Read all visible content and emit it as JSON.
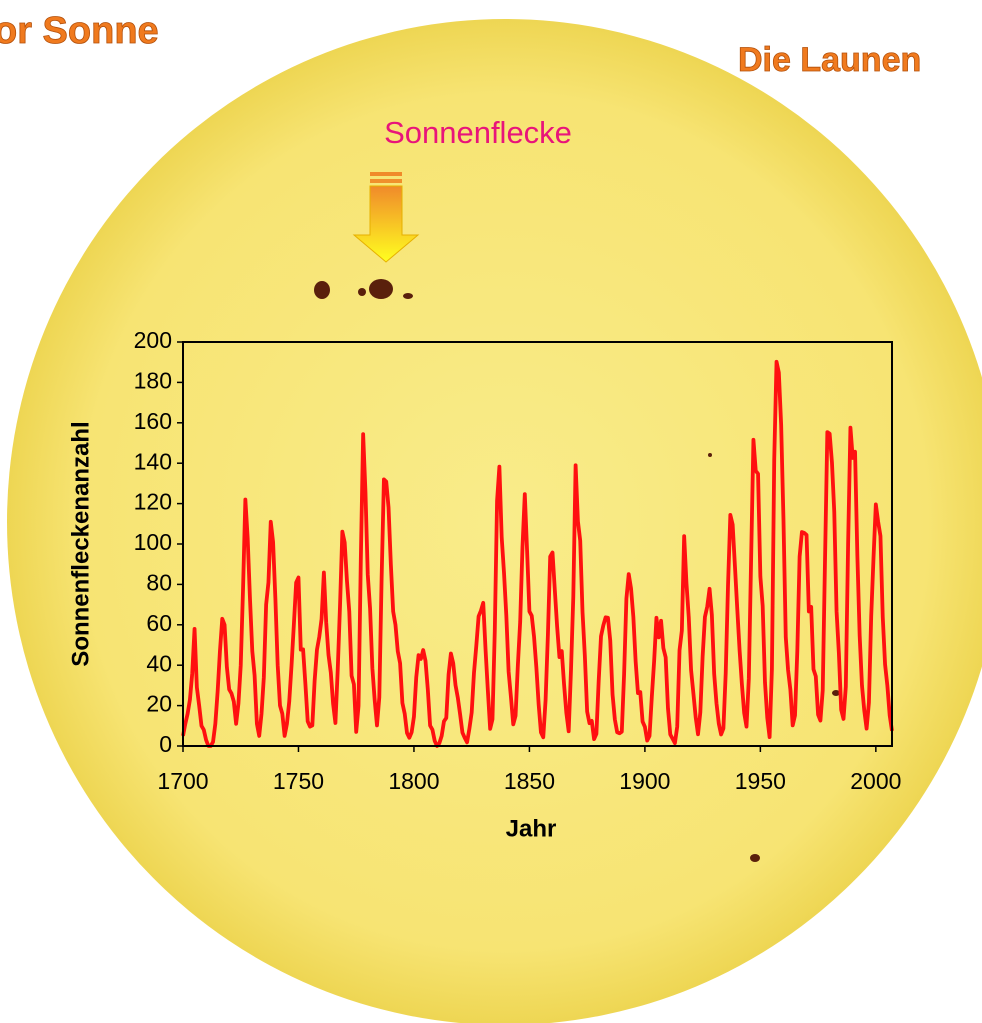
{
  "chart_data": {
    "type": "line",
    "header_left": "or Sonne",
    "header_right": "Die Launen",
    "annotation": "Sonnenflecke",
    "xlabel": "Jahr",
    "ylabel": "Sonnenfleckenanzahl",
    "color": "#ff1010",
    "xlim": [
      1700,
      2007
    ],
    "ylim": [
      0,
      200
    ],
    "xticks": [
      1700,
      1750,
      1800,
      1850,
      1900,
      1950,
      2000
    ],
    "yticks": [
      0,
      20,
      40,
      60,
      80,
      100,
      120,
      140,
      160,
      180,
      200
    ],
    "x": [
      1700,
      1701,
      1702,
      1703,
      1704,
      1705,
      1706,
      1707,
      1708,
      1709,
      1710,
      1711,
      1712,
      1713,
      1714,
      1715,
      1716,
      1717,
      1718,
      1719,
      1720,
      1721,
      1722,
      1723,
      1724,
      1725,
      1726,
      1727,
      1728,
      1729,
      1730,
      1731,
      1732,
      1733,
      1734,
      1735,
      1736,
      1737,
      1738,
      1739,
      1740,
      1741,
      1742,
      1743,
      1744,
      1745,
      1746,
      1747,
      1748,
      1749,
      1750,
      1751,
      1752,
      1753,
      1754,
      1755,
      1756,
      1757,
      1758,
      1759,
      1760,
      1761,
      1762,
      1763,
      1764,
      1765,
      1766,
      1767,
      1768,
      1769,
      1770,
      1771,
      1772,
      1773,
      1774,
      1775,
      1776,
      1777,
      1778,
      1779,
      1780,
      1781,
      1782,
      1783,
      1784,
      1785,
      1786,
      1787,
      1788,
      1789,
      1790,
      1791,
      1792,
      1793,
      1794,
      1795,
      1796,
      1797,
      1798,
      1799,
      1800,
      1801,
      1802,
      1803,
      1804,
      1805,
      1806,
      1807,
      1808,
      1809,
      1810,
      1811,
      1812,
      1813,
      1814,
      1815,
      1816,
      1817,
      1818,
      1819,
      1820,
      1821,
      1822,
      1823,
      1824,
      1825,
      1826,
      1827,
      1828,
      1829,
      1830,
      1831,
      1832,
      1833,
      1834,
      1835,
      1836,
      1837,
      1838,
      1839,
      1840,
      1841,
      1842,
      1843,
      1844,
      1845,
      1846,
      1847,
      1848,
      1849,
      1850,
      1851,
      1852,
      1853,
      1854,
      1855,
      1856,
      1857,
      1858,
      1859,
      1860,
      1861,
      1862,
      1863,
      1864,
      1865,
      1866,
      1867,
      1868,
      1869,
      1870,
      1871,
      1872,
      1873,
      1874,
      1875,
      1876,
      1877,
      1878,
      1879,
      1880,
      1881,
      1882,
      1883,
      1884,
      1885,
      1886,
      1887,
      1888,
      1889,
      1890,
      1891,
      1892,
      1893,
      1894,
      1895,
      1896,
      1897,
      1898,
      1899,
      1900,
      1901,
      1902,
      1903,
      1904,
      1905,
      1906,
      1907,
      1908,
      1909,
      1910,
      1911,
      1912,
      1913,
      1914,
      1915,
      1916,
      1917,
      1918,
      1919,
      1920,
      1921,
      1922,
      1923,
      1924,
      1925,
      1926,
      1927,
      1928,
      1929,
      1930,
      1931,
      1932,
      1933,
      1934,
      1935,
      1936,
      1937,
      1938,
      1939,
      1940,
      1941,
      1942,
      1943,
      1944,
      1945,
      1946,
      1947,
      1948,
      1949,
      1950,
      1951,
      1952,
      1953,
      1954,
      1955,
      1956,
      1957,
      1958,
      1959,
      1960,
      1961,
      1962,
      1963,
      1964,
      1965,
      1966,
      1967,
      1968,
      1969,
      1970,
      1971,
      1972,
      1973,
      1974,
      1975,
      1976,
      1977,
      1978,
      1979,
      1980,
      1981,
      1982,
      1983,
      1984,
      1985,
      1986,
      1987,
      1988,
      1989,
      1990,
      1991,
      1992,
      1993,
      1994,
      1995,
      1996,
      1997,
      1998,
      1999,
      2000,
      2001,
      2002,
      2003,
      2004,
      2005,
      2006,
      2007
    ],
    "values": [
      5,
      11,
      16,
      23,
      36,
      58,
      29,
      20,
      10,
      8,
      3,
      0,
      0,
      2,
      11,
      27,
      47,
      63,
      60,
      39,
      28,
      26,
      22,
      11,
      21,
      40,
      78,
      122,
      103,
      73,
      47,
      35,
      11,
      5,
      16,
      34,
      70,
      81,
      111,
      101,
      73,
      40,
      20,
      16,
      5,
      11,
      22,
      40,
      60,
      80.9,
      83.4,
      47.7,
      47.8,
      30.7,
      12.2,
      9.6,
      10.2,
      32.4,
      47.6,
      54,
      62.9,
      85.9,
      61.2,
      45.1,
      36.4,
      20.9,
      11.4,
      37.8,
      69.8,
      106.1,
      100.8,
      81.6,
      66.5,
      34.8,
      30.6,
      7,
      19.8,
      92.5,
      154.4,
      125.9,
      84.8,
      68.1,
      38.5,
      22.8,
      10.2,
      24.1,
      82.9,
      132,
      130.9,
      118.1,
      89.9,
      66.6,
      60,
      46.9,
      41,
      21.3,
      16,
      6.4,
      4.1,
      6.8,
      14.5,
      34,
      45,
      43.1,
      47.5,
      42.2,
      28.1,
      10.1,
      8.1,
      2.5,
      0,
      1.4,
      5,
      12.2,
      13.9,
      35.4,
      45.8,
      41,
      30.1,
      23.9,
      15.6,
      6.6,
      4,
      1.8,
      8.5,
      16.6,
      36.3,
      49.6,
      64.2,
      67,
      70.9,
      47.8,
      27.5,
      8.5,
      13.2,
      56.9,
      121.5,
      138.3,
      103.2,
      85.7,
      64.6,
      36.7,
      24.2,
      10.7,
      15,
      40.1,
      61.5,
      98.5,
      124.7,
      96.3,
      66.6,
      64.5,
      54.1,
      39,
      20.6,
      6.7,
      4.3,
      22.7,
      54.8,
      93.8,
      95.8,
      77.2,
      59.1,
      44,
      47,
      30.5,
      16.3,
      7.3,
      37.6,
      74,
      139,
      111.2,
      101.6,
      66.2,
      44.7,
      17,
      11.3,
      12.4,
      3.4,
      6,
      32.3,
      54.3,
      59.7,
      63.7,
      63.5,
      52.2,
      25.4,
      13.1,
      6.8,
      6.3,
      7.1,
      35.6,
      73,
      85.1,
      78,
      64,
      41.8,
      26.2,
      26.7,
      12.1,
      9.5,
      2.7,
      5,
      24.4,
      42,
      63.5,
      53.8,
      62,
      48.5,
      43.9,
      18.6,
      5.7,
      3.6,
      1.4,
      9.6,
      47.4,
      57.1,
      103.9,
      80.6,
      63.6,
      37.6,
      26.1,
      14.2,
      5.8,
      16.7,
      44.3,
      63.9,
      69,
      77.8,
      64.9,
      35.7,
      21.2,
      11.1,
      5.7,
      8.7,
      36.1,
      79.7,
      114.4,
      109.6,
      88.8,
      67.8,
      47.5,
      30.6,
      16.3,
      9.6,
      33.2,
      92.6,
      151.6,
      136.3,
      134.7,
      83.9,
      69.4,
      31.5,
      13.9,
      4.4,
      38,
      141.7,
      190.2,
      184.8,
      159,
      112.3,
      53.9,
      37.6,
      27.9,
      10.2,
      15.1,
      47,
      93.8,
      105.9,
      105.5,
      104.5,
      66.6,
      68.9,
      38,
      34.5,
      15.5,
      12.6,
      27.5,
      92.5,
      155.4,
      154.6,
      140.4,
      115.9,
      66.6,
      45.9,
      17.9,
      13.4,
      29.4,
      100.2,
      157.6,
      142.6,
      145.7,
      94.3,
      54.6,
      29.9,
      17.5,
      8.6,
      21.5,
      64.3,
      93.3,
      119.6,
      111,
      104,
      63.7,
      40.4,
      29.8,
      15.2,
      7.5
    ]
  }
}
